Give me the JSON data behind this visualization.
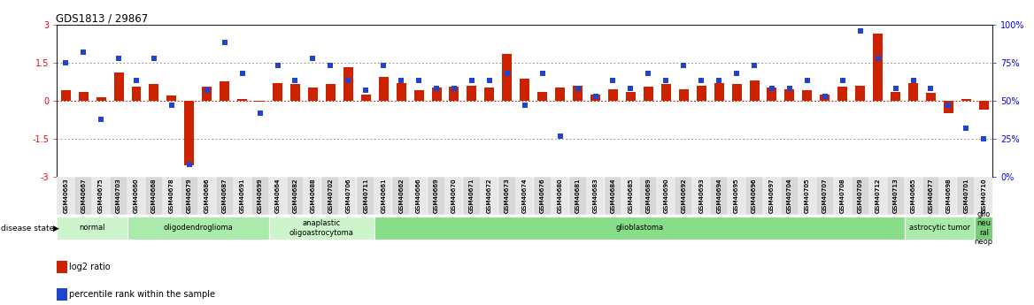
{
  "title": "GDS1813 / 29867",
  "samples": [
    "GSM40663",
    "GSM40667",
    "GSM40675",
    "GSM40703",
    "GSM40660",
    "GSM40668",
    "GSM40678",
    "GSM40679",
    "GSM40686",
    "GSM40687",
    "GSM40691",
    "GSM40699",
    "GSM40664",
    "GSM40682",
    "GSM40688",
    "GSM40702",
    "GSM40706",
    "GSM40711",
    "GSM40661",
    "GSM40662",
    "GSM40666",
    "GSM40669",
    "GSM40670",
    "GSM40671",
    "GSM40672",
    "GSM40673",
    "GSM40674",
    "GSM40676",
    "GSM40680",
    "GSM40681",
    "GSM40683",
    "GSM40684",
    "GSM40685",
    "GSM40689",
    "GSM40690",
    "GSM40692",
    "GSM40693",
    "GSM40694",
    "GSM40695",
    "GSM40696",
    "GSM40697",
    "GSM40704",
    "GSM40705",
    "GSM40707",
    "GSM40708",
    "GSM40709",
    "GSM40712",
    "GSM40713",
    "GSM40665",
    "GSM40677",
    "GSM40698",
    "GSM40701",
    "GSM40710"
  ],
  "log2_ratio": [
    0.4,
    0.35,
    0.15,
    1.1,
    0.55,
    0.65,
    0.2,
    -2.55,
    0.55,
    0.75,
    0.05,
    -0.05,
    0.7,
    0.65,
    0.5,
    0.65,
    1.3,
    0.25,
    0.95,
    0.7,
    0.4,
    0.5,
    0.55,
    0.6,
    0.5,
    1.85,
    0.85,
    0.35,
    0.5,
    0.6,
    0.25,
    0.45,
    0.35,
    0.55,
    0.65,
    0.45,
    0.6,
    0.7,
    0.65,
    0.8,
    0.5,
    0.45,
    0.4,
    0.25,
    0.55,
    0.6,
    2.65,
    0.35,
    0.7,
    0.3,
    -0.5,
    0.05,
    -0.35
  ],
  "percentile": [
    75,
    82,
    38,
    78,
    63,
    78,
    47,
    8,
    57,
    88,
    68,
    42,
    73,
    63,
    78,
    73,
    63,
    57,
    73,
    63,
    63,
    58,
    58,
    63,
    63,
    68,
    47,
    68,
    27,
    58,
    53,
    63,
    58,
    68,
    63,
    73,
    63,
    63,
    68,
    73,
    58,
    58,
    63,
    53,
    63,
    96,
    78,
    58,
    63,
    58,
    47,
    32,
    25
  ],
  "groups": [
    {
      "label": "normal",
      "start": 0,
      "end": 4,
      "color": "#ccf5cc"
    },
    {
      "label": "oligodendroglioma",
      "start": 4,
      "end": 12,
      "color": "#aaeaaa"
    },
    {
      "label": "anaplastic\noligoastrocytoma",
      "start": 12,
      "end": 18,
      "color": "#ccf5cc"
    },
    {
      "label": "glioblastoma",
      "start": 18,
      "end": 48,
      "color": "#88dd88"
    },
    {
      "label": "astrocytic tumor",
      "start": 48,
      "end": 52,
      "color": "#aaeaaa"
    },
    {
      "label": "glio\nneu\nral\nneop",
      "start": 52,
      "end": 53,
      "color": "#77cc77"
    }
  ],
  "ylim": [
    -3,
    3
  ],
  "yticks_left": [
    -3,
    -1.5,
    0,
    1.5,
    3
  ],
  "yticks_right": [
    0,
    25,
    50,
    75,
    100
  ],
  "bar_color": "#cc2200",
  "dot_color": "#2244cc",
  "hline_color": "#cc2200",
  "dotted_color": "#777777",
  "bar_width": 0.55
}
